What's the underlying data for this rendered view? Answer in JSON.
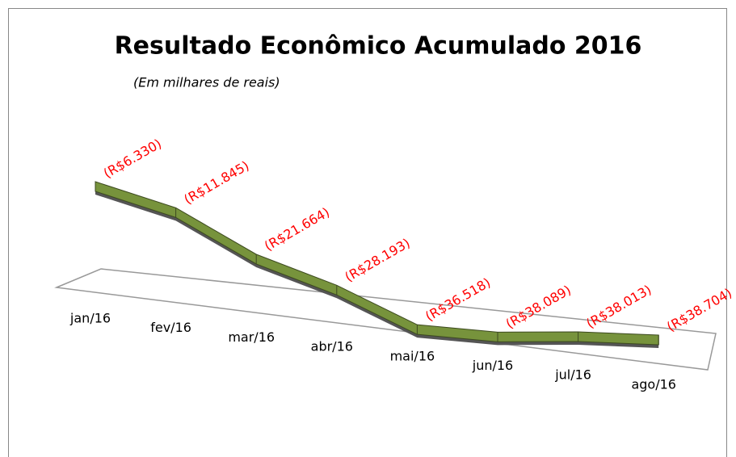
{
  "chart_data": {
    "type": "line3d",
    "title": "Resultado Econômico Acumulado 2016",
    "subtitle": "(Em milhares de reais)",
    "categories": [
      "jan/16",
      "fev/16",
      "mar/16",
      "abr/16",
      "mai/16",
      "jun/16",
      "jul/16",
      "ago/16"
    ],
    "values": [
      -6330,
      -11845,
      -21664,
      -28193,
      -36518,
      -38089,
      -38013,
      -38704
    ],
    "value_labels": [
      "(R$6.330)",
      "(R$11.845)",
      "(R$21.664)",
      "(R$28.193)",
      "(R$36.518)",
      "(R$38.089)",
      "(R$38.013)",
      "(R$38.704)"
    ],
    "color": "#77933c",
    "label_color": "#ff0000"
  }
}
